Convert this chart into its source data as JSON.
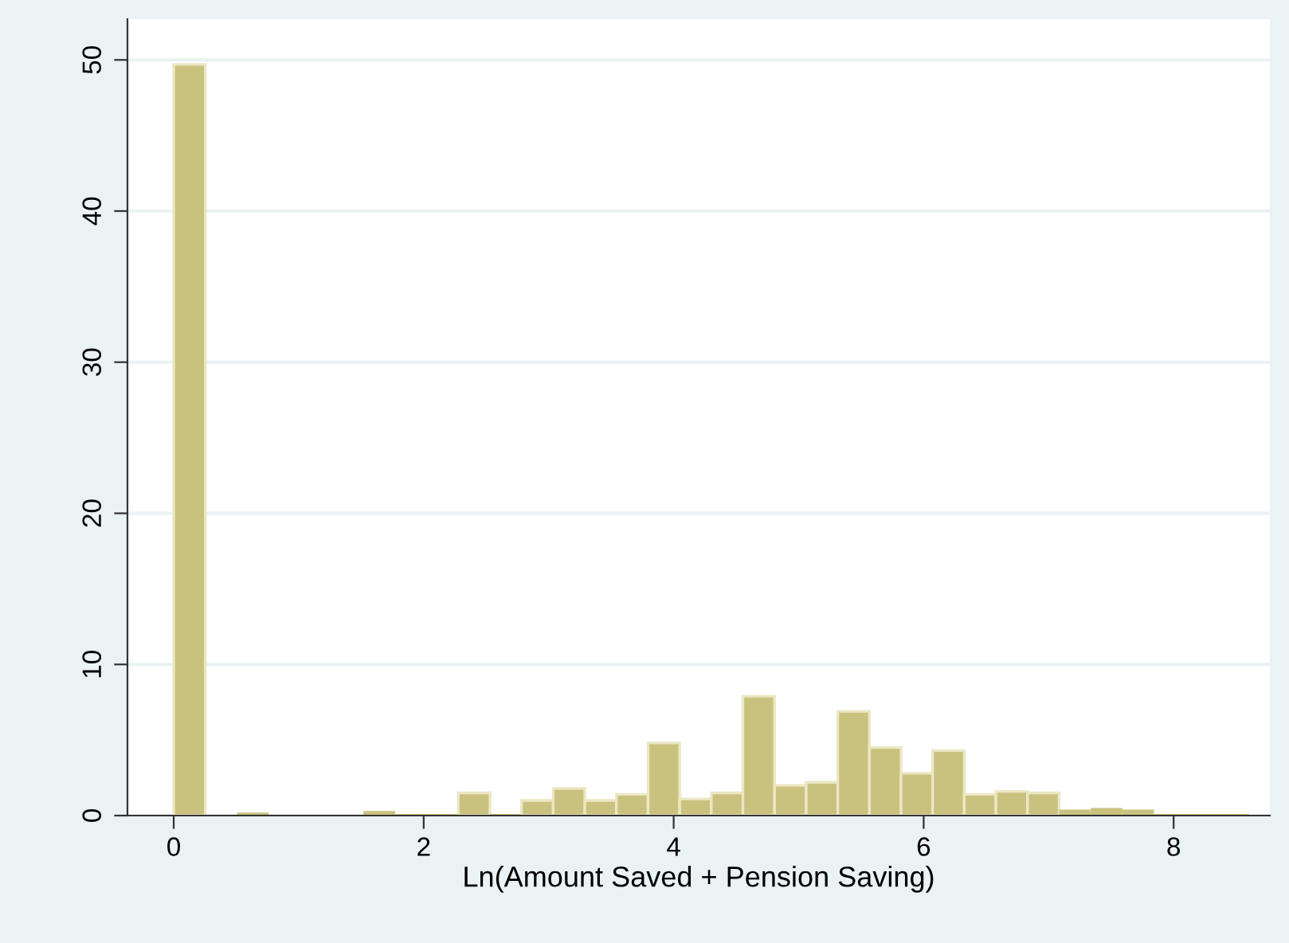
{
  "chart_data": {
    "type": "histogram",
    "xlabel": "Ln(Amount Saved + Pension Saving)",
    "bins": [
      0,
      0.253,
      0.506,
      0.759,
      1.012,
      1.265,
      1.518,
      1.771,
      2.024,
      2.277,
      2.53,
      2.783,
      3.036,
      3.289,
      3.542,
      3.795,
      4.048,
      4.301,
      4.554,
      4.807,
      5.06,
      5.313,
      5.566,
      5.819,
      6.072,
      6.325,
      6.578,
      6.831,
      7.084,
      7.337,
      7.59,
      7.843,
      8.096,
      8.349,
      8.602
    ],
    "values": [
      49.7,
      0,
      0.2,
      0,
      0,
      0,
      0.3,
      0.1,
      0.1,
      1.5,
      0.1,
      1.0,
      1.8,
      1.0,
      1.4,
      4.8,
      1.1,
      1.5,
      7.9,
      2.0,
      2.2,
      6.9,
      4.5,
      2.8,
      4.3,
      1.4,
      1.6,
      1.5,
      0.4,
      0.5,
      0.4,
      0.1,
      0.1,
      0.1
    ],
    "color": "#c9c27f",
    "xlim": [
      -0.37,
      8.77
    ],
    "ylim": [
      0,
      52.7
    ],
    "xticks": [
      0,
      2,
      4,
      6,
      8
    ],
    "yticks": [
      0,
      10,
      20,
      30,
      40,
      50
    ],
    "grid": "y"
  }
}
